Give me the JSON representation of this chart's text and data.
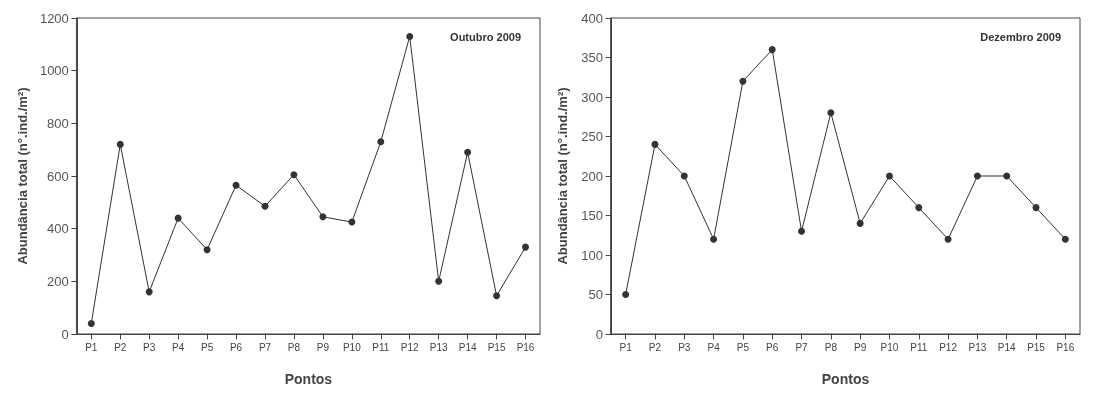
{
  "chart_data": [
    {
      "type": "line",
      "title": "Outubro 2009",
      "xlabel": "Pontos",
      "ylabel": "Abundância total (n°.ind./m²)",
      "categories": [
        "P1",
        "P2",
        "P3",
        "P4",
        "P5",
        "P6",
        "P7",
        "P8",
        "P9",
        "P10",
        "P11",
        "P12",
        "P13",
        "P14",
        "P15",
        "P16"
      ],
      "series": [
        {
          "color": "#333333",
          "values": [
            40,
            720,
            160,
            440,
            320,
            565,
            485,
            605,
            445,
            425,
            730,
            1130,
            200,
            690,
            145,
            330
          ]
        }
      ],
      "ylim": [
        0,
        1200
      ],
      "yticks": [
        0,
        200,
        400,
        600,
        800,
        1000,
        1200
      ],
      "grid": false,
      "marker": "circle",
      "line_style": "solid"
    },
    {
      "type": "line",
      "title": "Dezembro 2009",
      "xlabel": "Pontos",
      "ylabel": "Abundância total (n°.ind./m²)",
      "categories": [
        "P1",
        "P2",
        "P3",
        "P4",
        "P5",
        "P6",
        "P7",
        "P8",
        "P9",
        "P10",
        "P11",
        "P12",
        "P13",
        "P14",
        "P15",
        "P16"
      ],
      "series": [
        {
          "color": "#333333",
          "values": [
            50,
            240,
            200,
            120,
            320,
            360,
            130,
            280,
            140,
            200,
            160,
            120,
            200,
            200,
            160,
            120
          ]
        }
      ],
      "ylim": [
        0,
        400
      ],
      "yticks": [
        0,
        50,
        100,
        150,
        200,
        250,
        300,
        350,
        400
      ],
      "grid": false,
      "marker": "circle",
      "line_style": "solid"
    }
  ]
}
